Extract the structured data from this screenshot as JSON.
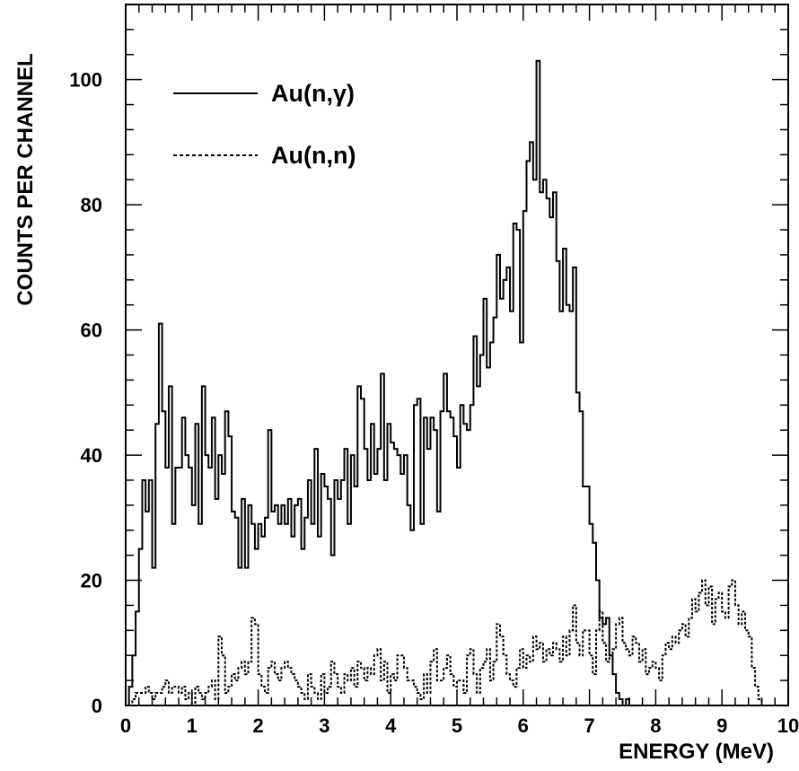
{
  "chart_data": {
    "type": "line",
    "style": "step-histogram",
    "xlabel": "ENERGY (MeV)",
    "ylabel": "COUNTS PER CHANNEL",
    "xlim": [
      0,
      10
    ],
    "ylim": [
      0,
      112
    ],
    "x_ticks": [
      0,
      1,
      2,
      3,
      4,
      5,
      6,
      7,
      8,
      9,
      10
    ],
    "y_ticks": [
      0,
      20,
      40,
      60,
      80,
      100
    ],
    "grid": false,
    "legend_position": "top-left",
    "bin_width": 0.05,
    "x_start": 0.0,
    "series": [
      {
        "name": "Au(n,γ)",
        "line_style": "solid",
        "values": [
          0,
          3,
          8,
          15,
          25,
          36,
          31,
          36,
          22,
          45,
          61,
          47,
          38,
          51,
          29,
          38,
          38,
          46,
          40,
          38,
          32,
          45,
          29,
          51,
          40,
          38,
          46,
          33,
          40,
          37,
          47,
          43,
          31,
          30,
          22,
          33,
          22,
          32,
          29,
          25,
          29,
          27,
          30,
          44,
          31,
          32,
          29,
          32,
          29,
          33,
          27,
          32,
          33,
          25,
          30,
          36,
          29,
          41,
          27,
          37,
          35,
          33,
          24,
          36,
          33,
          36,
          41,
          29,
          40,
          35,
          51,
          49,
          41,
          36,
          45,
          37,
          41,
          53,
          36,
          45,
          42,
          41,
          40,
          37,
          40,
          32,
          28,
          48,
          49,
          29,
          46,
          41,
          46,
          44,
          31,
          47,
          53,
          47,
          46,
          43,
          38,
          48,
          45,
          44,
          48,
          59,
          51,
          56,
          65,
          54,
          58,
          62,
          72,
          65,
          68,
          70,
          63,
          77,
          76,
          58,
          79,
          87,
          90,
          84,
          103,
          82,
          84,
          81,
          78,
          82,
          71,
          63,
          73,
          64,
          63,
          70,
          50,
          47,
          35,
          35,
          29,
          26,
          20,
          14,
          13,
          14,
          8,
          5,
          2,
          1,
          0,
          1,
          0,
          0,
          0,
          0,
          0,
          0,
          0,
          0,
          0,
          0,
          0,
          0,
          0,
          0,
          0,
          0,
          0,
          0,
          0,
          0,
          0,
          0,
          0,
          0,
          0,
          0,
          0,
          0,
          0,
          0,
          0,
          0,
          0,
          0,
          0,
          0,
          0,
          0,
          0,
          0,
          0,
          0,
          0,
          0,
          0,
          0,
          0,
          0
        ]
      },
      {
        "name": "Au(n,n)",
        "line_style": "dashed",
        "values": [
          0,
          0,
          1,
          2,
          2,
          2,
          3,
          2,
          1,
          2,
          2,
          3,
          4,
          2,
          3,
          3,
          2,
          3,
          1,
          2,
          0,
          3,
          2,
          1,
          2,
          3,
          4,
          1,
          11,
          8,
          2,
          3,
          5,
          4,
          6,
          7,
          5,
          7,
          14,
          13,
          5,
          3,
          2,
          6,
          7,
          5,
          4,
          6,
          7,
          6,
          5,
          4,
          3,
          2,
          1,
          5,
          3,
          2,
          1,
          5,
          2,
          3,
          7,
          5,
          3,
          2,
          5,
          4,
          6,
          3,
          7,
          6,
          4,
          6,
          5,
          8,
          9,
          4,
          7,
          2,
          5,
          4,
          8,
          8,
          6,
          4,
          4,
          3,
          2,
          1,
          5,
          2,
          7,
          9,
          4,
          4,
          6,
          8,
          5,
          3,
          4,
          4,
          2,
          8,
          9,
          5,
          2,
          6,
          7,
          9,
          4,
          7,
          13,
          11,
          8,
          5,
          4,
          3,
          6,
          9,
          6,
          8,
          7,
          11,
          9,
          10,
          7,
          9,
          8,
          10,
          9,
          7,
          11,
          8,
          12,
          16,
          10,
          8,
          12,
          12,
          8,
          5,
          12,
          15,
          10,
          7,
          8,
          9,
          13,
          14,
          10,
          9,
          8,
          11,
          10,
          7,
          9,
          5,
          6,
          7,
          6,
          4,
          8,
          10,
          9,
          11,
          10,
          12,
          13,
          11,
          14,
          17,
          15,
          18,
          20,
          16,
          19,
          13,
          17,
          18,
          15,
          14,
          19,
          20,
          16,
          13,
          15,
          12,
          11,
          6,
          3,
          1,
          0,
          0,
          0,
          0,
          0,
          0,
          0,
          0
        ]
      }
    ]
  }
}
